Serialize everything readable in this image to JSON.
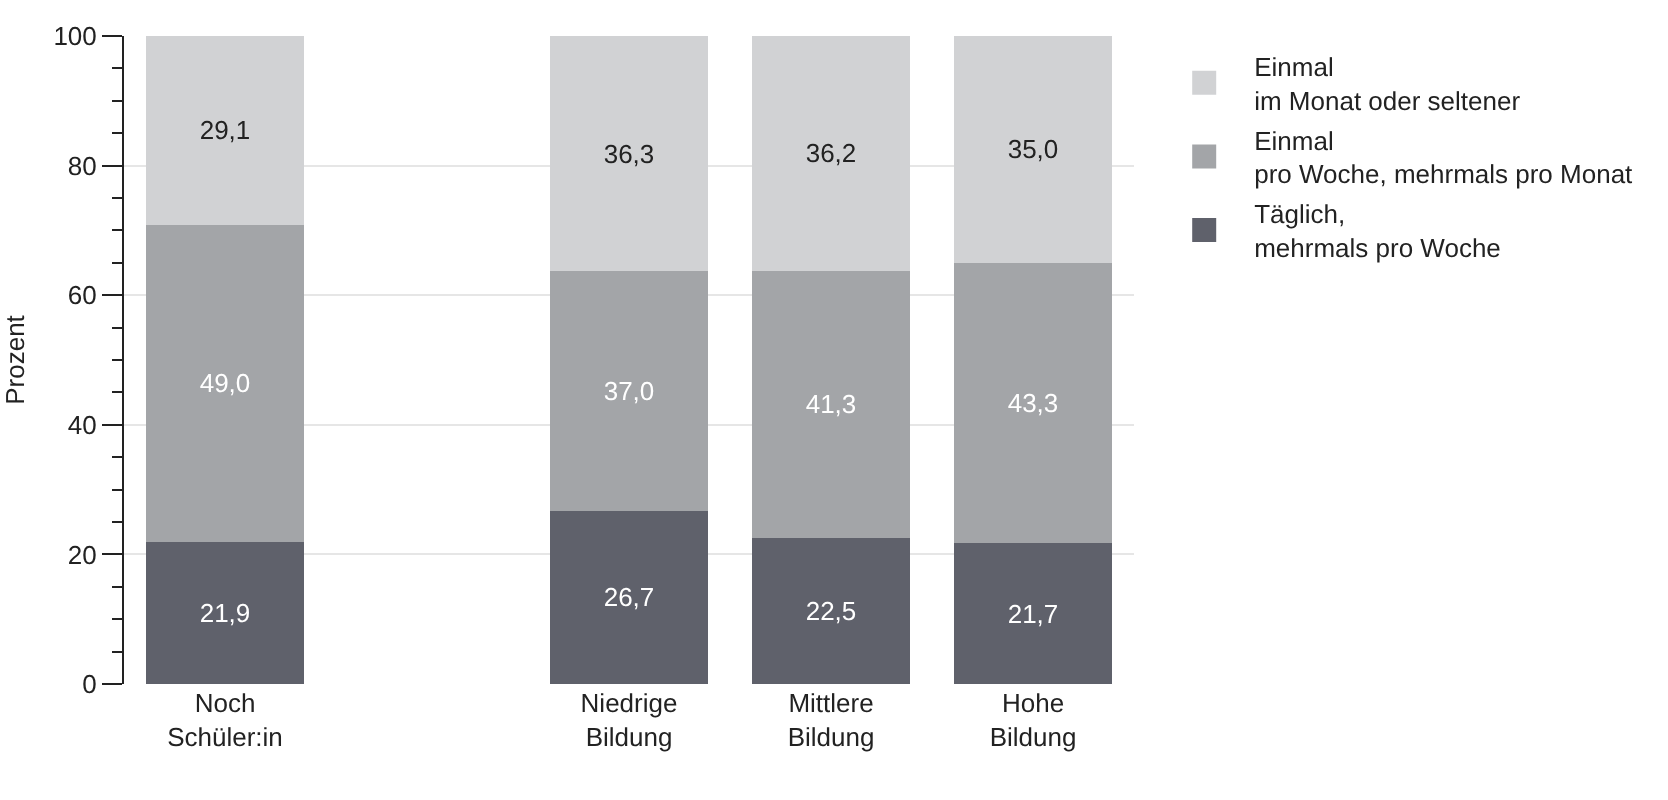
{
  "chart_data": {
    "type": "bar",
    "stacked": true,
    "ylabel": "Prozent",
    "categories": [
      "Noch Schüler:in",
      null,
      "Niedrige Bildung",
      "Mittlere Bildung",
      "Hohe Bildung"
    ],
    "series": [
      {
        "name": "Täglich, mehrmals pro Woche",
        "color": "#5f616b",
        "values": [
          21.9,
          null,
          26.7,
          22.5,
          21.7
        ],
        "value_labels": [
          "21,9",
          null,
          "26,7",
          "22,5",
          "21,7"
        ]
      },
      {
        "name": "Einmal pro Woche, mehrmals pro Monat",
        "color": "#a3a5a8",
        "values": [
          49.0,
          null,
          37.0,
          41.3,
          43.3
        ],
        "value_labels": [
          "49,0",
          null,
          "37,0",
          "41,3",
          "43,3"
        ]
      },
      {
        "name": "Einmal im Monat oder seltener",
        "color": "#d1d2d4",
        "values": [
          29.1,
          null,
          36.3,
          36.2,
          35.0
        ],
        "value_labels": [
          "29,1",
          null,
          "36,3",
          "36,2",
          "35,0"
        ]
      }
    ],
    "ylim": [
      0,
      100
    ],
    "yticks": [
      0,
      {
        "value": 5,
        "label": null
      },
      {
        "value": 10,
        "label": null
      },
      {
        "value": 15,
        "label": null
      },
      20,
      {
        "value": 25,
        "label": null
      },
      {
        "value": 30,
        "label": null
      },
      {
        "value": 35,
        "label": null
      },
      40,
      {
        "value": 45,
        "label": null
      },
      {
        "value": 50,
        "label": null
      },
      {
        "value": 55,
        "label": null
      },
      60,
      {
        "value": 65,
        "label": null
      },
      {
        "value": 70,
        "label": null
      },
      {
        "value": 75,
        "label": null
      },
      80,
      {
        "value": 85,
        "label": null
      },
      {
        "value": 90,
        "label": null
      },
      {
        "value": 95,
        "label": null
      },
      100
    ],
    "grid": "y",
    "legend": "top right"
  }
}
